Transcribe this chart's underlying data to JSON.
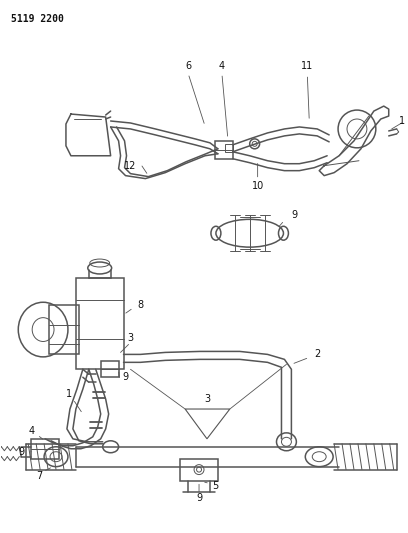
{
  "bg_color": "#ffffff",
  "line_color": "#555555",
  "label_color": "#111111",
  "fig_id": "5119 2200",
  "fig_id_fontsize": 7,
  "lw_main": 1.1,
  "lw_thin": 0.7,
  "fs_label": 7
}
